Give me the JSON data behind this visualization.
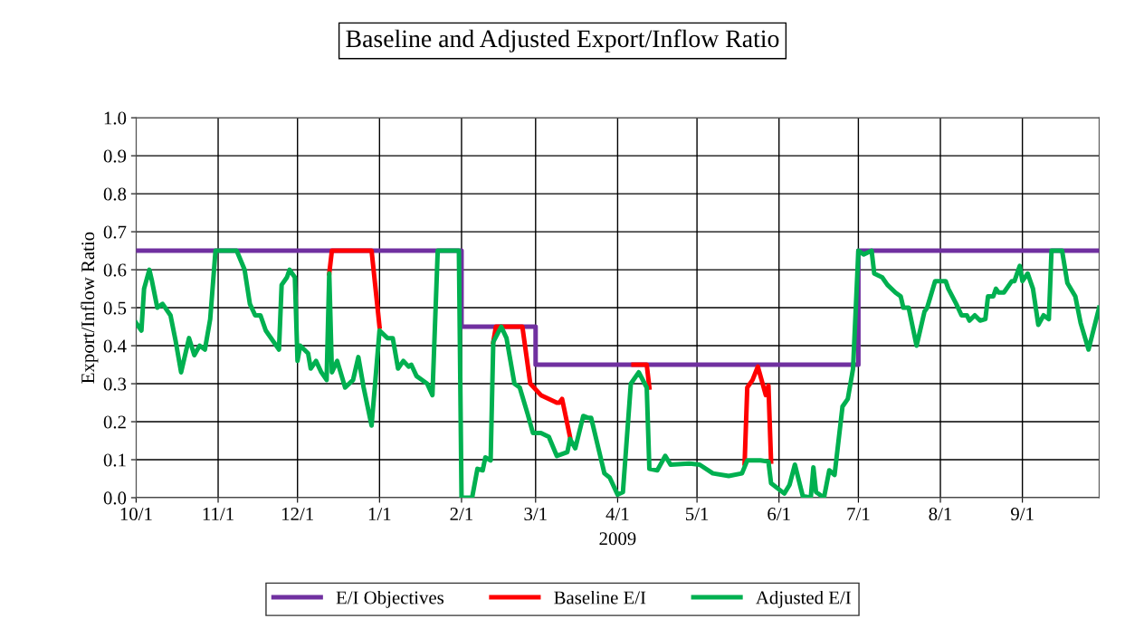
{
  "chart_data": {
    "type": "line",
    "title": "Baseline and Adjusted Export/Inflow Ratio",
    "xlabel": "2009",
    "ylabel": "Export/Inflow Ratio",
    "xlim": [
      "2008-10-01",
      "2009-09-30"
    ],
    "xticks": [
      {
        "value": "2008-10-01",
        "label": "10/1"
      },
      {
        "value": "2008-11-01",
        "label": "11/1"
      },
      {
        "value": "2008-12-01",
        "label": "12/1"
      },
      {
        "value": "2009-01-01",
        "label": "1/1"
      },
      {
        "value": "2009-02-01",
        "label": "2/1"
      },
      {
        "value": "2009-03-01",
        "label": "3/1"
      },
      {
        "value": "2009-04-01",
        "label": "4/1"
      },
      {
        "value": "2009-05-01",
        "label": "5/1"
      },
      {
        "value": "2009-06-01",
        "label": "6/1"
      },
      {
        "value": "2009-07-01",
        "label": "7/1"
      },
      {
        "value": "2009-08-01",
        "label": "8/1"
      },
      {
        "value": "2009-09-01",
        "label": "9/1"
      }
    ],
    "ylim": [
      0,
      1
    ],
    "yticks": [
      {
        "value": 0,
        "label": "0.0"
      },
      {
        "value": 0.1,
        "label": "0.1"
      },
      {
        "value": 0.2,
        "label": "0.2"
      },
      {
        "value": 0.3,
        "label": "0.3"
      },
      {
        "value": 0.4,
        "label": "0.4"
      },
      {
        "value": 0.5,
        "label": "0.5"
      },
      {
        "value": 0.6,
        "label": "0.6"
      },
      {
        "value": 0.7,
        "label": "0.7"
      },
      {
        "value": 0.8,
        "label": "0.8"
      },
      {
        "value": 0.9,
        "label": "0.9"
      },
      {
        "value": 1,
        "label": "1.0"
      }
    ],
    "grid": true,
    "legend": "bottom",
    "marker": "none",
    "line_style": "solid",
    "series": [
      {
        "name": "E/I Objectives",
        "color": "#7030a0",
        "type": "step",
        "x": [
          "2008-10-01",
          "2009-02-01",
          "2009-03-01",
          "2009-07-01",
          "2009-09-30"
        ],
        "values": [
          0.65,
          0.45,
          0.35,
          0.65,
          0.65
        ]
      },
      {
        "name": "Baseline E/I",
        "color": "#ff0000",
        "x": [
          "2008-12-13",
          "2008-12-14",
          "2008-12-29",
          "2009-01-01",
          "2009-01-02",
          "2009-02-13",
          "2009-02-14",
          "2009-02-24",
          "2009-02-27",
          "2009-03-03",
          "2009-03-09",
          "2009-03-10",
          "2009-03-11",
          "2009-03-14",
          "2009-03-15",
          "2009-04-07",
          "2009-04-12",
          "2009-04-13",
          "2009-04-14",
          "2009-05-19",
          "2009-05-20",
          "2009-05-22",
          "2009-05-24",
          "2009-05-27",
          "2009-05-28",
          "2009-05-29"
        ],
        "values": [
          0.59,
          0.65,
          0.65,
          0.45,
          null,
          0.41,
          0.45,
          0.45,
          0.3,
          0.27,
          0.25,
          0.25,
          0.26,
          0.16,
          null,
          0.35,
          0.35,
          0.29,
          null,
          0.09,
          0.29,
          0.31,
          0.345,
          0.27,
          0.295,
          0.095
        ]
      },
      {
        "name": "Adjusted E/I",
        "color": "#00b050",
        "x": [
          "2008-10-01",
          "2008-10-03",
          "2008-10-04",
          "2008-10-06",
          "2008-10-07",
          "2008-10-09",
          "2008-10-11",
          "2008-10-14",
          "2008-10-16",
          "2008-10-18",
          "2008-10-21",
          "2008-10-23",
          "2008-10-25",
          "2008-10-27",
          "2008-10-29",
          "2008-10-31",
          "2008-11-08",
          "2008-11-11",
          "2008-11-13",
          "2008-11-15",
          "2008-11-17",
          "2008-11-19",
          "2008-11-22",
          "2008-11-24",
          "2008-11-25",
          "2008-11-27",
          "2008-11-28",
          "2008-11-30",
          "2008-12-01",
          "2008-12-02",
          "2008-12-05",
          "2008-12-06",
          "2008-12-08",
          "2008-12-10",
          "2008-12-12",
          "2008-12-13",
          "2008-12-14",
          "2008-12-16",
          "2008-12-19",
          "2008-12-22",
          "2008-12-24",
          "2008-12-26",
          "2008-12-29",
          "2009-01-01",
          "2009-01-04",
          "2009-01-06",
          "2009-01-08",
          "2009-01-10",
          "2009-01-12",
          "2009-01-13",
          "2009-01-15",
          "2009-01-17",
          "2009-01-19",
          "2009-01-21",
          "2009-01-23",
          "2009-01-31",
          "2009-02-01",
          "2009-02-05",
          "2009-02-07",
          "2009-02-09",
          "2009-02-10",
          "2009-02-12",
          "2009-02-13",
          "2009-02-16",
          "2009-02-18",
          "2009-02-21",
          "2009-02-23",
          "2009-02-26",
          "2009-02-28",
          "2009-03-03",
          "2009-03-06",
          "2009-03-09",
          "2009-03-13",
          "2009-03-14",
          "2009-03-16",
          "2009-03-19",
          "2009-03-21",
          "2009-03-22",
          "2009-03-27",
          "2009-03-29",
          "2009-04-01",
          "2009-04-03",
          "2009-04-06",
          "2009-04-09",
          "2009-04-12",
          "2009-04-13",
          "2009-04-16",
          "2009-04-19",
          "2009-04-21",
          "2009-04-28",
          "2009-05-02",
          "2009-05-07",
          "2009-05-13",
          "2009-05-18",
          "2009-05-20",
          "2009-05-25",
          "2009-05-28",
          "2009-05-29",
          "2009-06-03",
          "2009-06-05",
          "2009-06-07",
          "2009-06-10",
          "2009-06-13",
          "2009-06-14",
          "2009-06-15",
          "2009-06-18",
          "2009-06-20",
          "2009-06-22",
          "2009-06-25",
          "2009-06-27",
          "2009-06-29",
          "2009-07-01",
          "2009-07-03",
          "2009-07-06",
          "2009-07-07",
          "2009-07-10",
          "2009-07-12",
          "2009-07-15",
          "2009-07-17",
          "2009-07-18",
          "2009-07-20",
          "2009-07-23",
          "2009-07-26",
          "2009-07-27",
          "2009-07-30",
          "2009-08-03",
          "2009-08-04",
          "2009-08-07",
          "2009-08-09",
          "2009-08-11",
          "2009-08-12",
          "2009-08-14",
          "2009-08-16",
          "2009-08-18",
          "2009-08-19",
          "2009-08-21",
          "2009-08-22",
          "2009-08-23",
          "2009-08-25",
          "2009-08-28",
          "2009-08-29",
          "2009-08-31",
          "2009-09-01",
          "2009-09-03",
          "2009-09-05",
          "2009-09-07",
          "2009-09-09",
          "2009-09-11",
          "2009-09-12",
          "2009-09-16",
          "2009-09-18",
          "2009-09-21",
          "2009-09-23",
          "2009-09-26",
          "2009-09-30"
        ],
        "values": [
          0.46,
          0.44,
          0.55,
          0.6,
          0.57,
          0.5,
          0.51,
          0.48,
          0.41,
          0.33,
          0.42,
          0.375,
          0.4,
          0.39,
          0.47,
          0.65,
          0.65,
          0.6,
          0.51,
          0.48,
          0.48,
          0.44,
          0.41,
          0.39,
          0.56,
          0.58,
          0.6,
          0.58,
          0.36,
          0.4,
          0.38,
          0.34,
          0.36,
          0.33,
          0.31,
          0.59,
          0.33,
          0.36,
          0.29,
          0.31,
          0.37,
          0.29,
          0.19,
          0.44,
          0.42,
          0.42,
          0.34,
          0.36,
          0.345,
          0.35,
          0.32,
          0.31,
          0.3,
          0.27,
          0.65,
          0.65,
          0,
          0,
          0.076,
          0.072,
          0.106,
          0.098,
          0.41,
          0.45,
          0.42,
          0.3,
          0.29,
          0.22,
          0.17,
          0.17,
          0.16,
          0.11,
          0.12,
          0.155,
          0.13,
          0.215,
          0.21,
          0.21,
          0.064,
          0.053,
          0.008,
          0.015,
          0.3,
          0.33,
          0.29,
          0.076,
          0.072,
          0.11,
          0.087,
          0.09,
          0.087,
          0.064,
          0.057,
          0.064,
          0.098,
          0.098,
          0.095,
          0.038,
          0.011,
          0.034,
          0.087,
          0.004,
          0,
          0.08,
          0.015,
          0,
          0.072,
          0.06,
          0.24,
          0.26,
          0.34,
          0.65,
          0.64,
          0.65,
          0.59,
          0.58,
          0.56,
          0.54,
          0.53,
          0.5,
          0.5,
          0.4,
          0.49,
          0.5,
          0.57,
          0.57,
          0.55,
          0.51,
          0.48,
          0.48,
          0.466,
          0.48,
          0.466,
          0.47,
          0.53,
          0.53,
          0.55,
          0.54,
          0.54,
          0.57,
          0.57,
          0.61,
          0.57,
          0.59,
          0.55,
          0.455,
          0.48,
          0.47,
          0.65,
          0.65,
          0.565,
          0.53,
          0.46,
          0.39,
          0.5
        ]
      }
    ]
  }
}
